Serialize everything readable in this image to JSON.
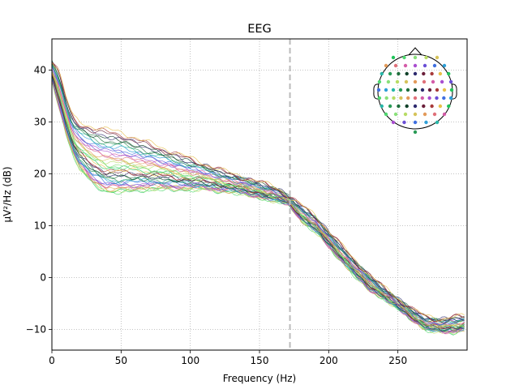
{
  "chart_data": {
    "type": "line",
    "title": "EEG",
    "xlabel": "Frequency (Hz)",
    "ylabel": "µV²/Hz (dB)",
    "xlim": [
      0,
      300
    ],
    "ylim": [
      -14,
      46
    ],
    "x_ticks": [
      0,
      50,
      100,
      150,
      200,
      250
    ],
    "y_ticks": [
      -10,
      0,
      10,
      20,
      30,
      40
    ],
    "grid": true,
    "legend": "none",
    "inset": "sensor head topomap, top-right",
    "marker_line": {
      "x": 172,
      "style": "dashed",
      "color": "#bbbbbb"
    },
    "channel_bundle": {
      "lower_envelope": [
        [
          0,
          38
        ],
        [
          5,
          33
        ],
        [
          10,
          28
        ],
        [
          15,
          24
        ],
        [
          20,
          21
        ],
        [
          30,
          18
        ],
        [
          40,
          16.5
        ],
        [
          50,
          16.5
        ],
        [
          70,
          17
        ],
        [
          90,
          17
        ],
        [
          110,
          17
        ],
        [
          130,
          16.5
        ],
        [
          150,
          15.5
        ],
        [
          165,
          14.5
        ],
        [
          172,
          14
        ],
        [
          180,
          11
        ],
        [
          190,
          9
        ],
        [
          200,
          6
        ],
        [
          210,
          3
        ],
        [
          220,
          0
        ],
        [
          230,
          -2.5
        ],
        [
          240,
          -4
        ],
        [
          250,
          -6
        ],
        [
          260,
          -8
        ],
        [
          270,
          -10
        ],
        [
          280,
          -10.5
        ],
        [
          290,
          -10.5
        ],
        [
          298,
          -10
        ]
      ],
      "upper_envelope": [
        [
          0,
          42
        ],
        [
          5,
          40
        ],
        [
          10,
          35
        ],
        [
          15,
          31
        ],
        [
          20,
          30
        ],
        [
          30,
          29
        ],
        [
          40,
          28.5
        ],
        [
          50,
          28
        ],
        [
          70,
          26
        ],
        [
          90,
          24
        ],
        [
          110,
          22
        ],
        [
          130,
          20
        ],
        [
          150,
          18.5
        ],
        [
          165,
          17
        ],
        [
          172,
          15.5
        ],
        [
          180,
          14
        ],
        [
          190,
          12
        ],
        [
          200,
          9
        ],
        [
          210,
          6
        ],
        [
          220,
          3
        ],
        [
          230,
          0.5
        ],
        [
          240,
          -2
        ],
        [
          250,
          -4
        ],
        [
          260,
          -6
        ],
        [
          270,
          -7.5
        ],
        [
          280,
          -8
        ],
        [
          290,
          -7.5
        ],
        [
          298,
          -7.5
        ]
      ]
    },
    "sensor_colors": [
      "#21c45a",
      "#4fd86f",
      "#8ae07a",
      "#b7dc64",
      "#d6c35a",
      "#e39a5a",
      "#e0707a",
      "#d45ca8",
      "#a94ed0",
      "#6a4fd6",
      "#3f6fe0",
      "#2f9fd8",
      "#27b7a8",
      "#2a9a56",
      "#1f6e3c",
      "#0f4028",
      "#2d2a6e",
      "#6b1f3a",
      "#a83a3a",
      "#e8c04a"
    ]
  }
}
